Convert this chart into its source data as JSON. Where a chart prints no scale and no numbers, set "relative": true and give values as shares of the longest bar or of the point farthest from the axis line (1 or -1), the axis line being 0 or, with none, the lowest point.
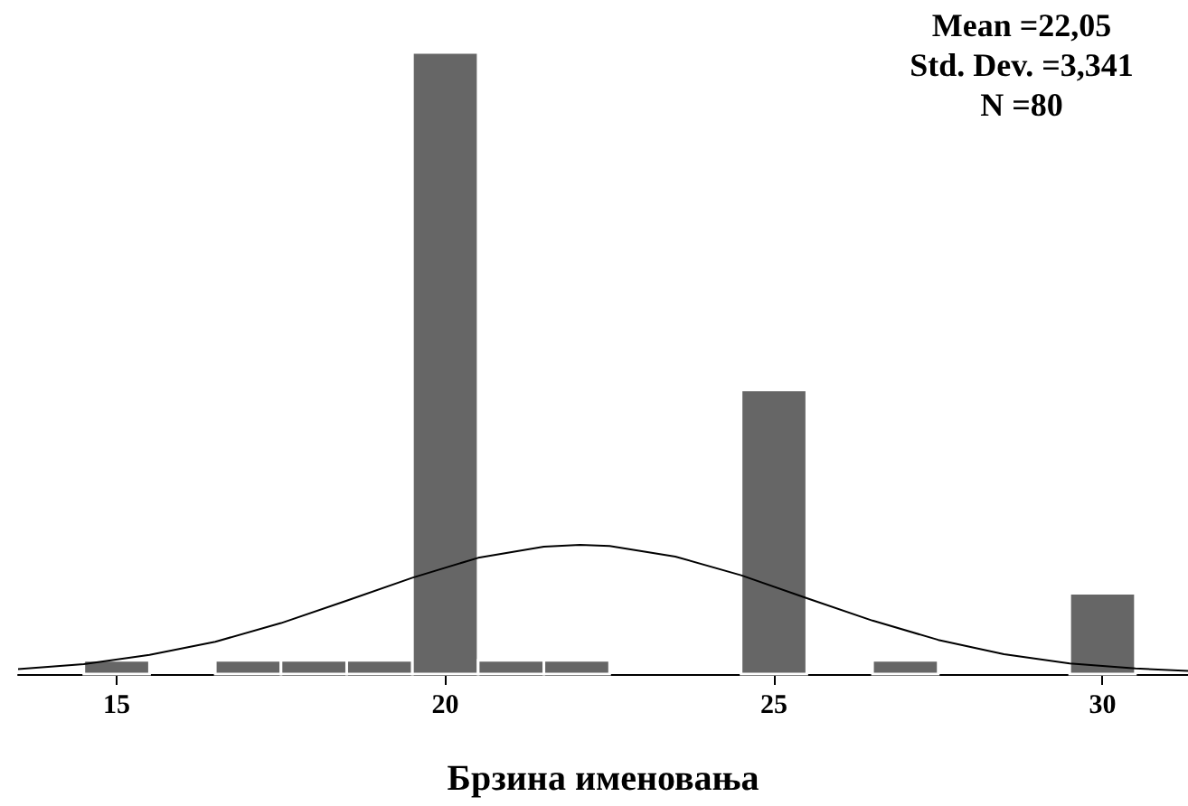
{
  "chart_data": {
    "type": "histogram",
    "relative": true,
    "xlabel": "Брзина именовања",
    "bins": [
      14.5,
      15.5,
      16.5,
      17.5,
      18.5,
      19.5,
      20.5,
      21.5,
      22.5,
      23.5,
      24.5,
      25.5,
      26.5,
      27.5,
      28.5,
      29.5,
      30.5
    ],
    "values": [
      0.022,
      0,
      0.022,
      0.022,
      0.022,
      1,
      0.022,
      0.022,
      0,
      0,
      0.457,
      0,
      0.022,
      0,
      0,
      0.13
    ],
    "color": "#666666",
    "xlim": [
      13.5,
      31.3
    ],
    "xticks": [
      15,
      20,
      25,
      30
    ],
    "grid": false,
    "series": [
      {
        "type": "line",
        "color": "#000000",
        "x": [
          13.5,
          14.5,
          15.5,
          16.5,
          17.5,
          18.5,
          19.5,
          20.5,
          21.5,
          22.05,
          22.5,
          23.5,
          24.5,
          25.5,
          26.5,
          27.5,
          28.5,
          29.5,
          30.5,
          31.3
        ],
        "values": [
          0.008,
          0.016,
          0.031,
          0.052,
          0.082,
          0.118,
          0.155,
          0.187,
          0.205,
          0.208,
          0.206,
          0.189,
          0.159,
          0.122,
          0.086,
          0.055,
          0.032,
          0.017,
          0.009,
          0.005
        ]
      }
    ],
    "annotations": [
      "Mean =22,05",
      "Std. Dev. =3,341",
      "N =80"
    ]
  }
}
